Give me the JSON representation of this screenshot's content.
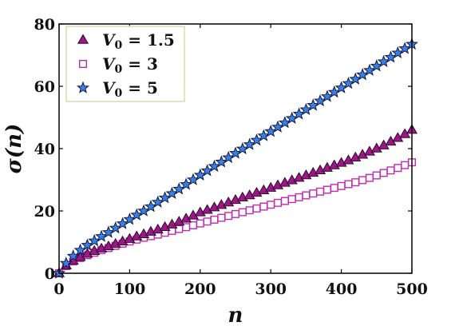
{
  "chart_data": {
    "type": "scatter",
    "title": "",
    "xlabel": "n",
    "ylabel": "σ(n)",
    "xlim": [
      0,
      500
    ],
    "ylim": [
      0,
      80
    ],
    "xticks": [
      0,
      100,
      200,
      300,
      400,
      500
    ],
    "yticks": [
      0,
      20,
      40,
      60,
      80
    ],
    "grid": false,
    "legend_position": "top-left",
    "series": [
      {
        "name": "V0 = 1.5",
        "legend_parts": {
          "var": "V",
          "sub": "0",
          "eq": " = 1.5"
        },
        "marker": "triangle",
        "color": "#a0158c",
        "edge": "#2a0a25",
        "x": [
          0,
          10,
          20,
          30,
          40,
          50,
          60,
          70,
          80,
          90,
          100,
          110,
          120,
          130,
          140,
          150,
          160,
          170,
          180,
          190,
          200,
          210,
          220,
          230,
          240,
          250,
          260,
          270,
          280,
          290,
          300,
          310,
          320,
          330,
          340,
          350,
          360,
          370,
          380,
          390,
          400,
          410,
          420,
          430,
          440,
          450,
          460,
          470,
          480,
          490,
          500
        ],
        "y": [
          0,
          2.5,
          4.0,
          5.2,
          6.2,
          7.1,
          7.9,
          8.6,
          9.4,
          10.2,
          11.0,
          11.8,
          12.5,
          13.3,
          14.0,
          14.8,
          15.6,
          16.5,
          17.5,
          18.5,
          19.5,
          20.3,
          21.1,
          21.9,
          22.7,
          23.5,
          24.3,
          25.0,
          25.8,
          26.6,
          27.4,
          28.2,
          29.0,
          29.8,
          30.6,
          31.4,
          32.2,
          33.0,
          33.8,
          34.6,
          35.4,
          36.2,
          37.1,
          38.0,
          39.0,
          40.0,
          41.0,
          42.2,
          43.4,
          44.6,
          46.0
        ]
      },
      {
        "name": "V0 = 3",
        "legend_parts": {
          "var": "V",
          "sub": "0",
          "eq": " = 3"
        },
        "marker": "square",
        "color": "#ffffff",
        "edge": "#c22ab0",
        "x": [
          0,
          10,
          20,
          30,
          40,
          50,
          60,
          70,
          80,
          90,
          100,
          110,
          120,
          130,
          140,
          150,
          160,
          170,
          180,
          190,
          200,
          210,
          220,
          230,
          240,
          250,
          260,
          270,
          280,
          290,
          300,
          310,
          320,
          330,
          340,
          350,
          360,
          370,
          380,
          390,
          400,
          410,
          420,
          430,
          440,
          450,
          460,
          470,
          480,
          490,
          500
        ],
        "y": [
          0,
          2.3,
          3.8,
          4.9,
          5.8,
          6.6,
          7.4,
          8.1,
          8.8,
          9.5,
          10.2,
          10.8,
          11.4,
          11.9,
          12.4,
          13.0,
          13.6,
          14.2,
          14.8,
          15.4,
          16.0,
          16.6,
          17.2,
          17.8,
          18.4,
          19.0,
          19.6,
          20.2,
          20.8,
          21.4,
          22.0,
          22.6,
          23.2,
          23.8,
          24.4,
          25.0,
          25.6,
          26.2,
          26.8,
          27.4,
          28.0,
          28.6,
          29.2,
          29.9,
          30.6,
          31.4,
          32.2,
          33.0,
          33.8,
          34.7,
          35.6
        ]
      },
      {
        "name": "V0 = 5",
        "legend_parts": {
          "var": "V",
          "sub": "0",
          "eq": " = 5"
        },
        "marker": "star",
        "color": "#3a7ee8",
        "edge": "#101a40",
        "x": [
          0,
          10,
          20,
          30,
          40,
          50,
          60,
          70,
          80,
          90,
          100,
          110,
          120,
          130,
          140,
          150,
          160,
          170,
          180,
          190,
          200,
          210,
          220,
          230,
          240,
          250,
          260,
          270,
          280,
          290,
          300,
          310,
          320,
          330,
          340,
          350,
          360,
          370,
          380,
          390,
          400,
          410,
          420,
          430,
          440,
          450,
          460,
          470,
          480,
          490,
          500
        ],
        "y": [
          0,
          3.2,
          5.5,
          7.4,
          9.0,
          10.4,
          11.8,
          13.1,
          14.5,
          15.9,
          17.3,
          18.7,
          20.0,
          21.4,
          22.8,
          24.2,
          25.6,
          27.0,
          28.5,
          30.0,
          31.5,
          32.9,
          34.3,
          35.7,
          37.1,
          38.5,
          39.9,
          41.3,
          42.7,
          44.1,
          45.5,
          46.9,
          48.3,
          49.7,
          51.1,
          52.5,
          53.9,
          55.3,
          56.7,
          58.1,
          59.5,
          60.9,
          62.3,
          63.7,
          65.1,
          66.5,
          67.9,
          69.3,
          70.7,
          72.1,
          73.5
        ]
      }
    ]
  }
}
